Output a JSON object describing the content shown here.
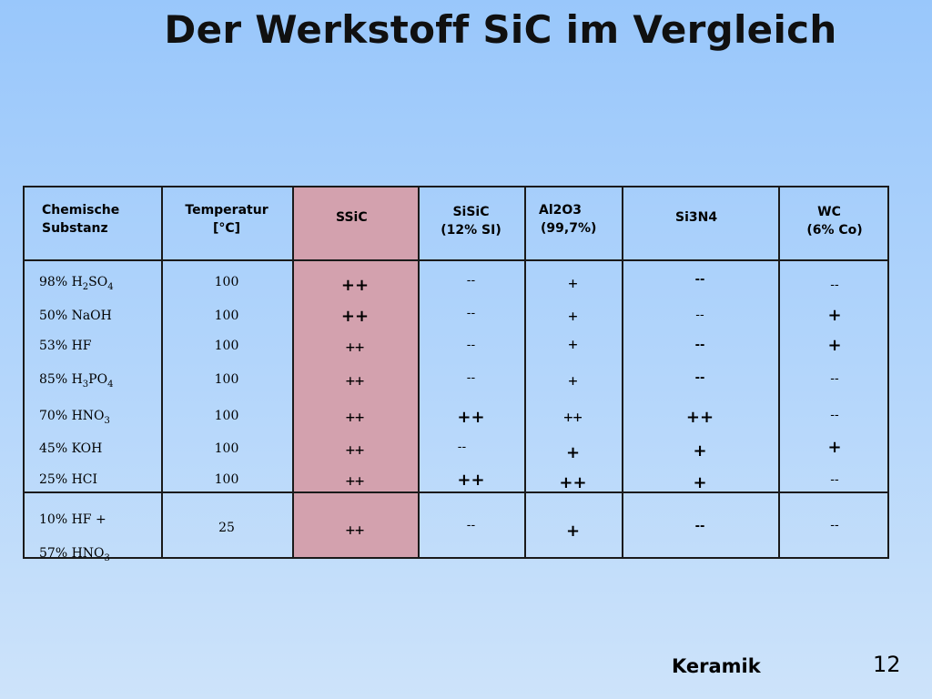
{
  "title": "Der Werkstoff SiC im Vergleich",
  "headers": {
    "substance": [
      "Chemische",
      "Substanz"
    ],
    "temperature": [
      "Temperatur",
      "[°C]"
    ],
    "ssic": "SSiC",
    "sisic": [
      "SiSiC",
      "(12% SI)"
    ],
    "al2o3": [
      "Al2O3",
      "(99,7%)"
    ],
    "si3n4": "Si3N4",
    "wc": [
      "WC",
      "(6% Co)"
    ]
  },
  "rows": [
    {
      "substance": "98% H2SO4",
      "temperature": "100",
      "ssic": "++",
      "sisic": "--",
      "al2o3": "+",
      "si3n4": "--",
      "wc": "--"
    },
    {
      "substance": "50% NaOH",
      "temperature": "100",
      "ssic": "++",
      "sisic": "--",
      "al2o3": "+",
      "si3n4": "--",
      "wc": "+"
    },
    {
      "substance": "53% HF",
      "temperature": "100",
      "ssic": "++",
      "sisic": "--",
      "al2o3": "+",
      "si3n4": "--",
      "wc": "+"
    },
    {
      "substance": "85% H3PO4",
      "temperature": "100",
      "ssic": "++",
      "sisic": "--",
      "al2o3": "+",
      "si3n4": "--",
      "wc": "--"
    },
    {
      "substance": "70% HNO3",
      "temperature": "100",
      "ssic": "++",
      "sisic": "++",
      "al2o3": "++",
      "si3n4": "++",
      "wc": "--"
    },
    {
      "substance": "45% KOH",
      "temperature": "100",
      "ssic": "++",
      "sisic": "--",
      "al2o3": "+",
      "si3n4": "+",
      "wc": "+"
    },
    {
      "substance": "25% HCI",
      "temperature": "100",
      "ssic": "++",
      "sisic": "++",
      "al2o3": "++",
      "si3n4": "+",
      "wc": "--"
    },
    {
      "substance": [
        "10% HF +",
        "57% HNO3"
      ],
      "temperature": "25",
      "ssic": "++",
      "sisic": "--",
      "al2o3": "+",
      "si3n4": "--",
      "wc": "--"
    }
  ],
  "footer": {
    "label": "Keramik",
    "page": "12"
  }
}
